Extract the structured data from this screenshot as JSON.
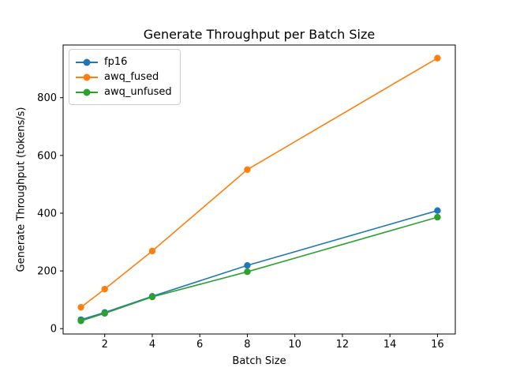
{
  "chart_data": {
    "type": "line",
    "title": "Generate Throughput per Batch Size",
    "xlabel": "Batch Size",
    "ylabel": "Generate Throughput (tokens/s)",
    "x": [
      1,
      2,
      4,
      8,
      16
    ],
    "series": [
      {
        "name": "fp16",
        "color": "#1f77b4",
        "values": [
          31,
          56,
          112,
          219,
          409
        ]
      },
      {
        "name": "awq_fused",
        "color": "#ff7f0e",
        "values": [
          74,
          137,
          269,
          551,
          937
        ]
      },
      {
        "name": "awq_unfused",
        "color": "#2ca02c",
        "values": [
          27,
          53,
          110,
          197,
          386
        ]
      }
    ],
    "xticks": [
      2,
      4,
      6,
      8,
      10,
      12,
      14,
      16
    ],
    "yticks": [
      0,
      200,
      400,
      600,
      800
    ],
    "xlim": [
      0.25,
      16.75
    ],
    "ylim": [
      -18.5,
      982.5
    ],
    "legend_position": "upper left",
    "grid": false,
    "marker": "o",
    "frame_color": "#000000",
    "background_color": "#ffffff"
  }
}
